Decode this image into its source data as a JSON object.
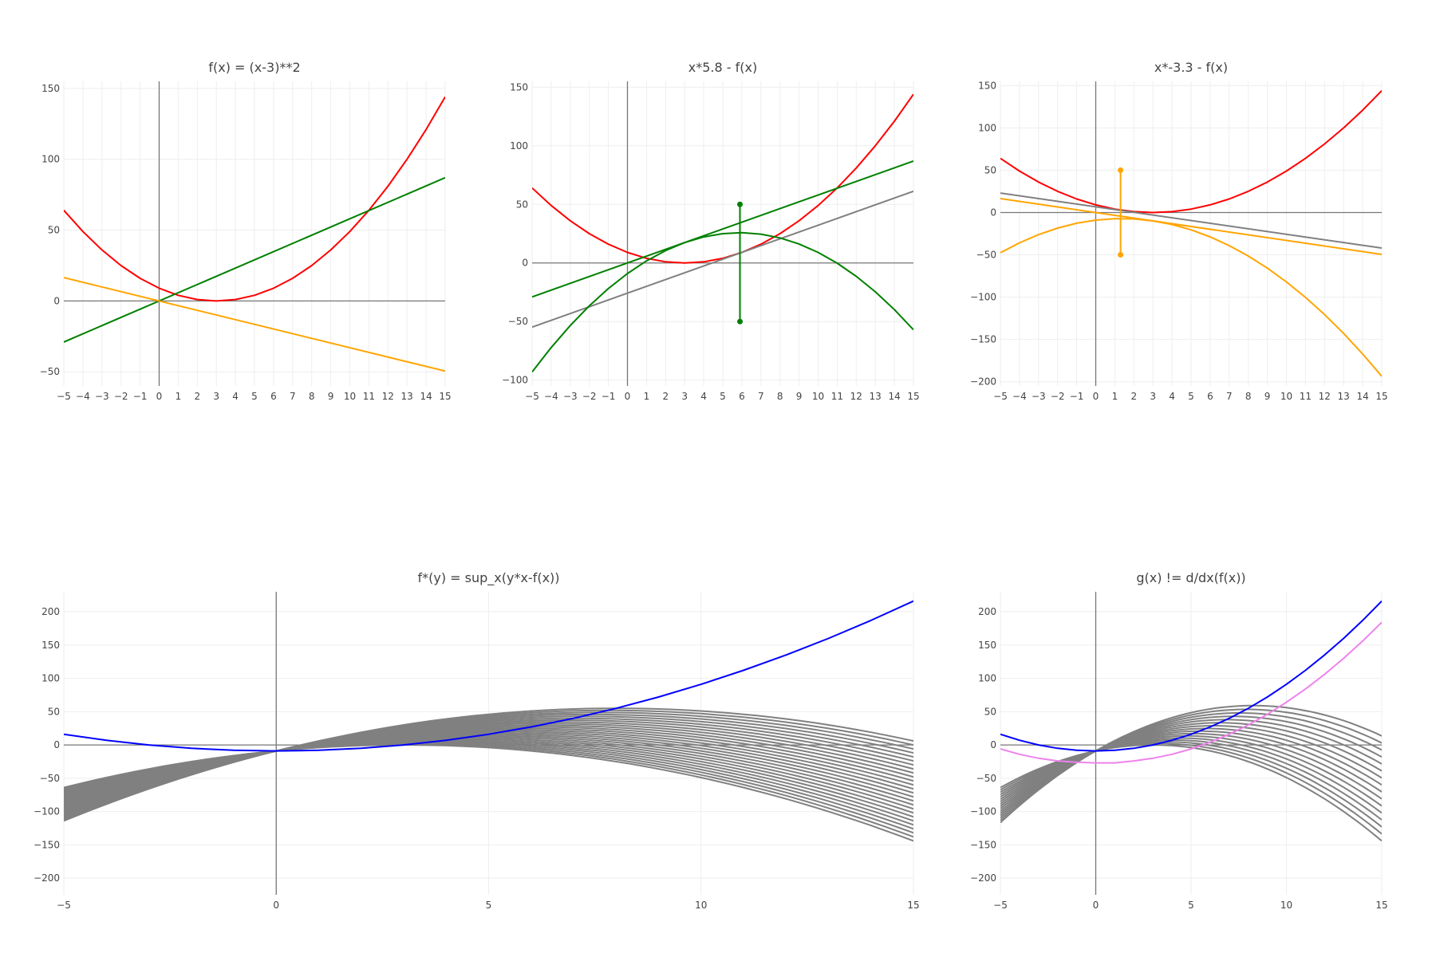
{
  "chart_data": [
    {
      "type": "line",
      "title": "f(x) = (x-3)**2",
      "xlim": [
        -5,
        15
      ],
      "ylim": [
        -60,
        155
      ],
      "xticks": [
        -5,
        -4,
        -3,
        -2,
        -1,
        0,
        1,
        2,
        3,
        4,
        5,
        6,
        7,
        8,
        9,
        10,
        11,
        12,
        13,
        14,
        15
      ],
      "yticks": [
        -50,
        0,
        50,
        100,
        150
      ],
      "grid": true,
      "series": [
        {
          "color": "#ff0000",
          "x": [
            -5,
            -4,
            -3,
            -2,
            -1,
            0,
            1,
            2,
            3,
            4,
            5,
            6,
            7,
            8,
            9,
            10,
            11,
            12,
            13,
            14,
            15
          ],
          "y": [
            64,
            49,
            36,
            25,
            16,
            9,
            4,
            1,
            0,
            1,
            4,
            9,
            16,
            25,
            36,
            49,
            64,
            81,
            100,
            121,
            144
          ]
        },
        {
          "color": "#008000",
          "x": [
            -5,
            15
          ],
          "y": [
            -29,
            87
          ]
        },
        {
          "color": "#ffa500",
          "x": [
            -5,
            15
          ],
          "y": [
            16.5,
            -49.5
          ]
        }
      ],
      "annotations": []
    },
    {
      "type": "line",
      "title": "x*5.8 - f(x)",
      "xlim": [
        -5,
        15
      ],
      "ylim": [
        -105,
        155
      ],
      "xticks": [
        -5,
        -4,
        -3,
        -2,
        -1,
        0,
        1,
        2,
        3,
        4,
        5,
        6,
        7,
        8,
        9,
        10,
        11,
        12,
        13,
        14,
        15
      ],
      "yticks": [
        -100,
        -50,
        0,
        50,
        100,
        150
      ],
      "grid": true,
      "series": [
        {
          "color": "#ff0000",
          "x": [
            -5,
            -4,
            -3,
            -2,
            -1,
            0,
            1,
            2,
            3,
            4,
            5,
            6,
            7,
            8,
            9,
            10,
            11,
            12,
            13,
            14,
            15
          ],
          "y": [
            64,
            49,
            36,
            25,
            16,
            9,
            4,
            1,
            0,
            1,
            4,
            9,
            16,
            25,
            36,
            49,
            64,
            81,
            100,
            121,
            144
          ]
        },
        {
          "color": "#008000",
          "x": [
            -5,
            15
          ],
          "y": [
            -29,
            87
          ]
        },
        {
          "color": "#808080",
          "x": [
            -5,
            15
          ],
          "y": [
            -54.8,
            61.2
          ]
        },
        {
          "color": "#008000",
          "x": [
            -5,
            -4,
            -3,
            -2,
            -1,
            0,
            1,
            2,
            3,
            4,
            5,
            6,
            7,
            8,
            9,
            10,
            11,
            12,
            13,
            14,
            15
          ],
          "y": [
            -93,
            -72.2,
            -53.4,
            -36.6,
            -21.8,
            -9,
            1.8,
            10.6,
            17.4,
            22.2,
            25,
            25.8,
            24.6,
            21.4,
            16.2,
            9,
            -0.2,
            -11.4,
            -24.6,
            -39.8,
            -57
          ]
        },
        {
          "color": "#008000",
          "x": [
            5.9,
            5.9
          ],
          "y": [
            50,
            -50
          ],
          "markers": true
        }
      ],
      "annotations": []
    },
    {
      "type": "line",
      "title": "x*-3.3 - f(x)",
      "xlim": [
        -5,
        15
      ],
      "ylim": [
        -205,
        155
      ],
      "xticks": [
        -5,
        -4,
        -3,
        -2,
        -1,
        0,
        1,
        2,
        3,
        4,
        5,
        6,
        7,
        8,
        9,
        10,
        11,
        12,
        13,
        14,
        15
      ],
      "yticks": [
        -200,
        -150,
        -100,
        -50,
        0,
        50,
        100,
        150
      ],
      "grid": true,
      "series": [
        {
          "color": "#ff0000",
          "x": [
            -5,
            -4,
            -3,
            -2,
            -1,
            0,
            1,
            2,
            3,
            4,
            5,
            6,
            7,
            8,
            9,
            10,
            11,
            12,
            13,
            14,
            15
          ],
          "y": [
            64,
            49,
            36,
            25,
            16,
            9,
            4,
            1,
            0,
            1,
            4,
            9,
            16,
            25,
            36,
            49,
            64,
            81,
            100,
            121,
            144
          ]
        },
        {
          "color": "#808080",
          "x": [
            -5,
            15
          ],
          "y": [
            23,
            -42
          ]
        },
        {
          "color": "#ffa500",
          "x": [
            -5,
            15
          ],
          "y": [
            16.5,
            -49.5
          ]
        },
        {
          "color": "#ffa500",
          "x": [
            -5,
            -4,
            -3,
            -2,
            -1,
            0,
            1,
            2,
            3,
            4,
            5,
            6,
            7,
            8,
            9,
            10,
            11,
            12,
            13,
            14,
            15
          ],
          "y": [
            -47.5,
            -35.8,
            -26.1,
            -18.4,
            -12.7,
            -9,
            -7.3,
            -7.6,
            -9.9,
            -14.2,
            -20.5,
            -28.8,
            -39.1,
            -51.4,
            -65.7,
            -82,
            -100.3,
            -120.6,
            -142.9,
            -167.2,
            -193.5
          ]
        },
        {
          "color": "#ffa500",
          "x": [
            1.3,
            1.3
          ],
          "y": [
            50,
            -50
          ],
          "markers": true
        }
      ],
      "annotations": []
    },
    {
      "type": "line",
      "title": "f*(y) = sup_x(y*x-f(x))",
      "xlim": [
        -5,
        15
      ],
      "ylim": [
        -225,
        230
      ],
      "xticks": [
        -5,
        0,
        5,
        10,
        15
      ],
      "yticks": [
        -200,
        -150,
        -100,
        -50,
        0,
        50,
        100,
        150,
        200
      ],
      "grid": true,
      "family": {
        "color": "#808080",
        "slopes": [
          0,
          0.4,
          0.8,
          1.2,
          1.6,
          2,
          2.4,
          2.8,
          3.2,
          3.6,
          4,
          4.4,
          4.8,
          5.2,
          5.6,
          6,
          6.4,
          6.8,
          7.2,
          7.6,
          8,
          8.4,
          8.8,
          9.2,
          9.6,
          10
        ],
        "x_range": [
          -5,
          15
        ]
      },
      "series": [
        {
          "color": "#0000ff",
          "x": [
            -5,
            -4,
            -3,
            -2,
            -1,
            0,
            1,
            2,
            3,
            4,
            5,
            6,
            7,
            8,
            9,
            10,
            11,
            12,
            13,
            14,
            15
          ],
          "y": [
            16,
            7,
            0,
            -5,
            -8,
            -9,
            -8,
            -5,
            0,
            7,
            16,
            27,
            40,
            55,
            72,
            91,
            112,
            135,
            160,
            187,
            216
          ]
        }
      ],
      "annotations": []
    },
    {
      "type": "line",
      "title": "g(x) != d/dx(f(x))",
      "xlim": [
        -5,
        15
      ],
      "ylim": [
        -225,
        230
      ],
      "xticks": [
        -5,
        0,
        5,
        10,
        15
      ],
      "yticks": [
        -200,
        -150,
        -100,
        -50,
        0,
        50,
        100,
        150,
        200
      ],
      "grid": true,
      "family": {
        "color": "#808080",
        "slopes": [
          0,
          0.7,
          1.4,
          2.1,
          2.8,
          3.5,
          4.2,
          4.9,
          5.6,
          6.3,
          7,
          7.7,
          8.4,
          9.1,
          9.8,
          10.5
        ],
        "x_range": [
          -5,
          15
        ]
      },
      "series": [
        {
          "color": "#0000ff",
          "x": [
            -5,
            -4,
            -3,
            -2,
            -1,
            0,
            1,
            2,
            3,
            4,
            5,
            6,
            7,
            8,
            9,
            10,
            11,
            12,
            13,
            14,
            15
          ],
          "y": [
            16,
            7,
            0,
            -5,
            -8,
            -9,
            -8,
            -5,
            0,
            7,
            16,
            27,
            40,
            55,
            72,
            91,
            112,
            135,
            160,
            187,
            216
          ]
        },
        {
          "color": "#ee82ee",
          "x": [
            -5,
            -4,
            -3,
            -2,
            -1,
            0,
            1,
            2,
            3,
            4,
            5,
            6,
            7,
            8,
            9,
            10,
            11,
            12,
            13,
            14,
            15
          ],
          "y": [
            -6,
            -14,
            -20,
            -24,
            -26,
            -27,
            -27,
            -24,
            -20,
            -14,
            -6,
            4,
            16,
            30,
            46,
            64,
            84,
            106,
            130,
            156,
            184
          ]
        }
      ],
      "annotations": []
    }
  ]
}
